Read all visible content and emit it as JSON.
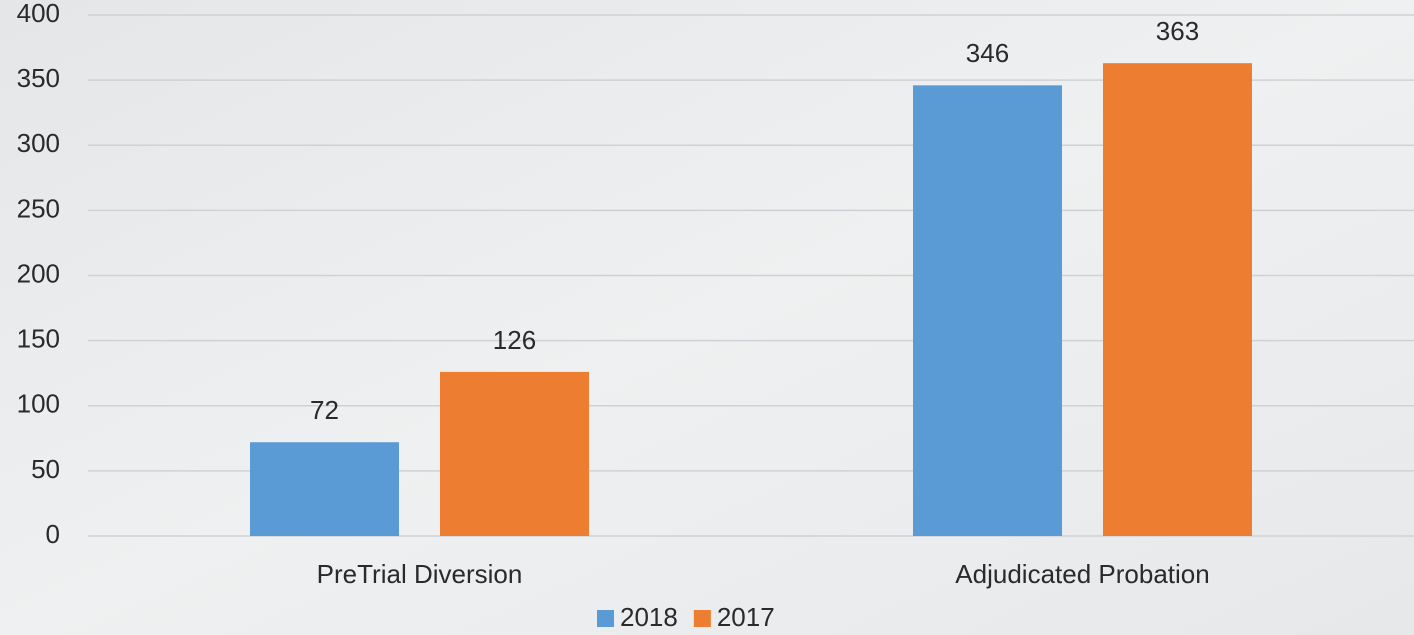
{
  "chart_data": {
    "type": "bar",
    "categories": [
      "PreTrial Diversion",
      "Adjudicated Probation"
    ],
    "series": [
      {
        "name": "2018",
        "color": "#5b9bd5",
        "values": [
          72,
          346
        ]
      },
      {
        "name": "2017",
        "color": "#ed7d31",
        "values": [
          126,
          363
        ]
      }
    ],
    "ylim": [
      0,
      400
    ],
    "yticks": [
      0,
      50,
      100,
      150,
      200,
      250,
      300,
      350,
      400
    ],
    "grid": true,
    "legend": "bottom"
  }
}
